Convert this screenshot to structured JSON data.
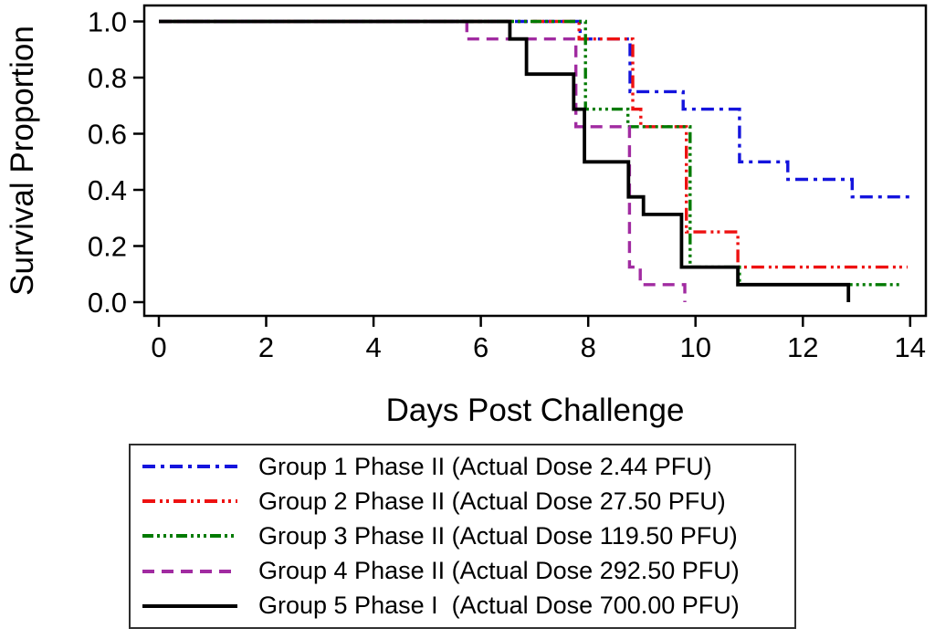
{
  "chart_data": {
    "type": "line",
    "subtype": "kaplan-meier-step",
    "title": "",
    "xlabel": "Days Post Challenge",
    "ylabel": "Survival Proportion",
    "xlim": [
      0,
      14
    ],
    "ylim": [
      0.0,
      1.0
    ],
    "grid": false,
    "legend_position": "below-chart-boxed",
    "x_tick_values": [
      0,
      2,
      4,
      6,
      8,
      10,
      12,
      14
    ],
    "x_tick_labels": [
      "0",
      "2",
      "4",
      "6",
      "8",
      "10",
      "12",
      "14"
    ],
    "y_tick_values": [
      1.0,
      0.8,
      0.6,
      0.4,
      0.2,
      0.0
    ],
    "y_tick_labels": [
      "1.0",
      "0.8",
      "0.6",
      "0.4",
      "0.2",
      "0.0"
    ],
    "axis_color": "#000000",
    "series": [
      {
        "name": "group-1",
        "label": "Group 1 Phase II (Actual Dose 2.44 PFU)",
        "color": "#1414dd",
        "line_style": "dash-dot",
        "dash": [
          14,
          6,
          4,
          6
        ],
        "steps": [
          [
            0,
            1.0
          ],
          [
            7.85,
            0.9375
          ],
          [
            8.78,
            0.75
          ],
          [
            9.77,
            0.6875
          ],
          [
            10.82,
            0.5
          ],
          [
            11.72,
            0.4375
          ],
          [
            12.92,
            0.375
          ]
        ],
        "end_day": 14.0
      },
      {
        "name": "group-2",
        "label": "Group 2 Phase II (Actual Dose 27.50 PFU)",
        "color": "#ee1111",
        "line_style": "dash-dot-dot",
        "dash": [
          14,
          5,
          3,
          4,
          3,
          5
        ],
        "steps": [
          [
            0,
            1.0
          ],
          [
            7.83,
            0.9375
          ],
          [
            8.83,
            0.6875
          ],
          [
            8.98,
            0.625
          ],
          [
            9.83,
            0.25
          ],
          [
            10.79,
            0.125
          ]
        ],
        "end_day": 13.95
      },
      {
        "name": "group-3",
        "label": "Group 3 Phase II (Actual Dose 119.50 PFU)",
        "color": "#007a00",
        "line_style": "dash-dot-dot-dot",
        "dash": [
          12,
          4,
          3,
          4,
          3,
          4,
          3,
          4
        ],
        "steps": [
          [
            0,
            1.0
          ],
          [
            7.95,
            0.6875
          ],
          [
            8.74,
            0.625
          ],
          [
            9.9,
            0.125
          ],
          [
            10.82,
            0.0625
          ]
        ],
        "end_day": 13.83
      },
      {
        "name": "group-4",
        "label": "Group 4 Phase II (Actual Dose 292.50 PFU)",
        "color": "#a12ba1",
        "line_style": "dash",
        "dash": [
          13,
          8
        ],
        "steps": [
          [
            0,
            1.0
          ],
          [
            5.74,
            0.9375
          ],
          [
            7.77,
            0.625
          ],
          [
            8.77,
            0.125
          ],
          [
            8.97,
            0.0625
          ],
          [
            9.8,
            0.0
          ]
        ],
        "end_day": 9.8
      },
      {
        "name": "group-5",
        "label": "Group 5 Phase I  (Actual Dose 700.00 PFU)",
        "color": "#000000",
        "line_style": "solid",
        "dash": [],
        "steps": [
          [
            0,
            1.0
          ],
          [
            6.54,
            0.9375
          ],
          [
            6.85,
            0.8125
          ],
          [
            7.73,
            0.6875
          ],
          [
            7.93,
            0.5
          ],
          [
            8.75,
            0.375
          ],
          [
            9.03,
            0.3125
          ],
          [
            9.74,
            0.125
          ],
          [
            10.79,
            0.0625
          ],
          [
            12.85,
            0.0
          ]
        ],
        "end_day": 12.85
      }
    ]
  }
}
